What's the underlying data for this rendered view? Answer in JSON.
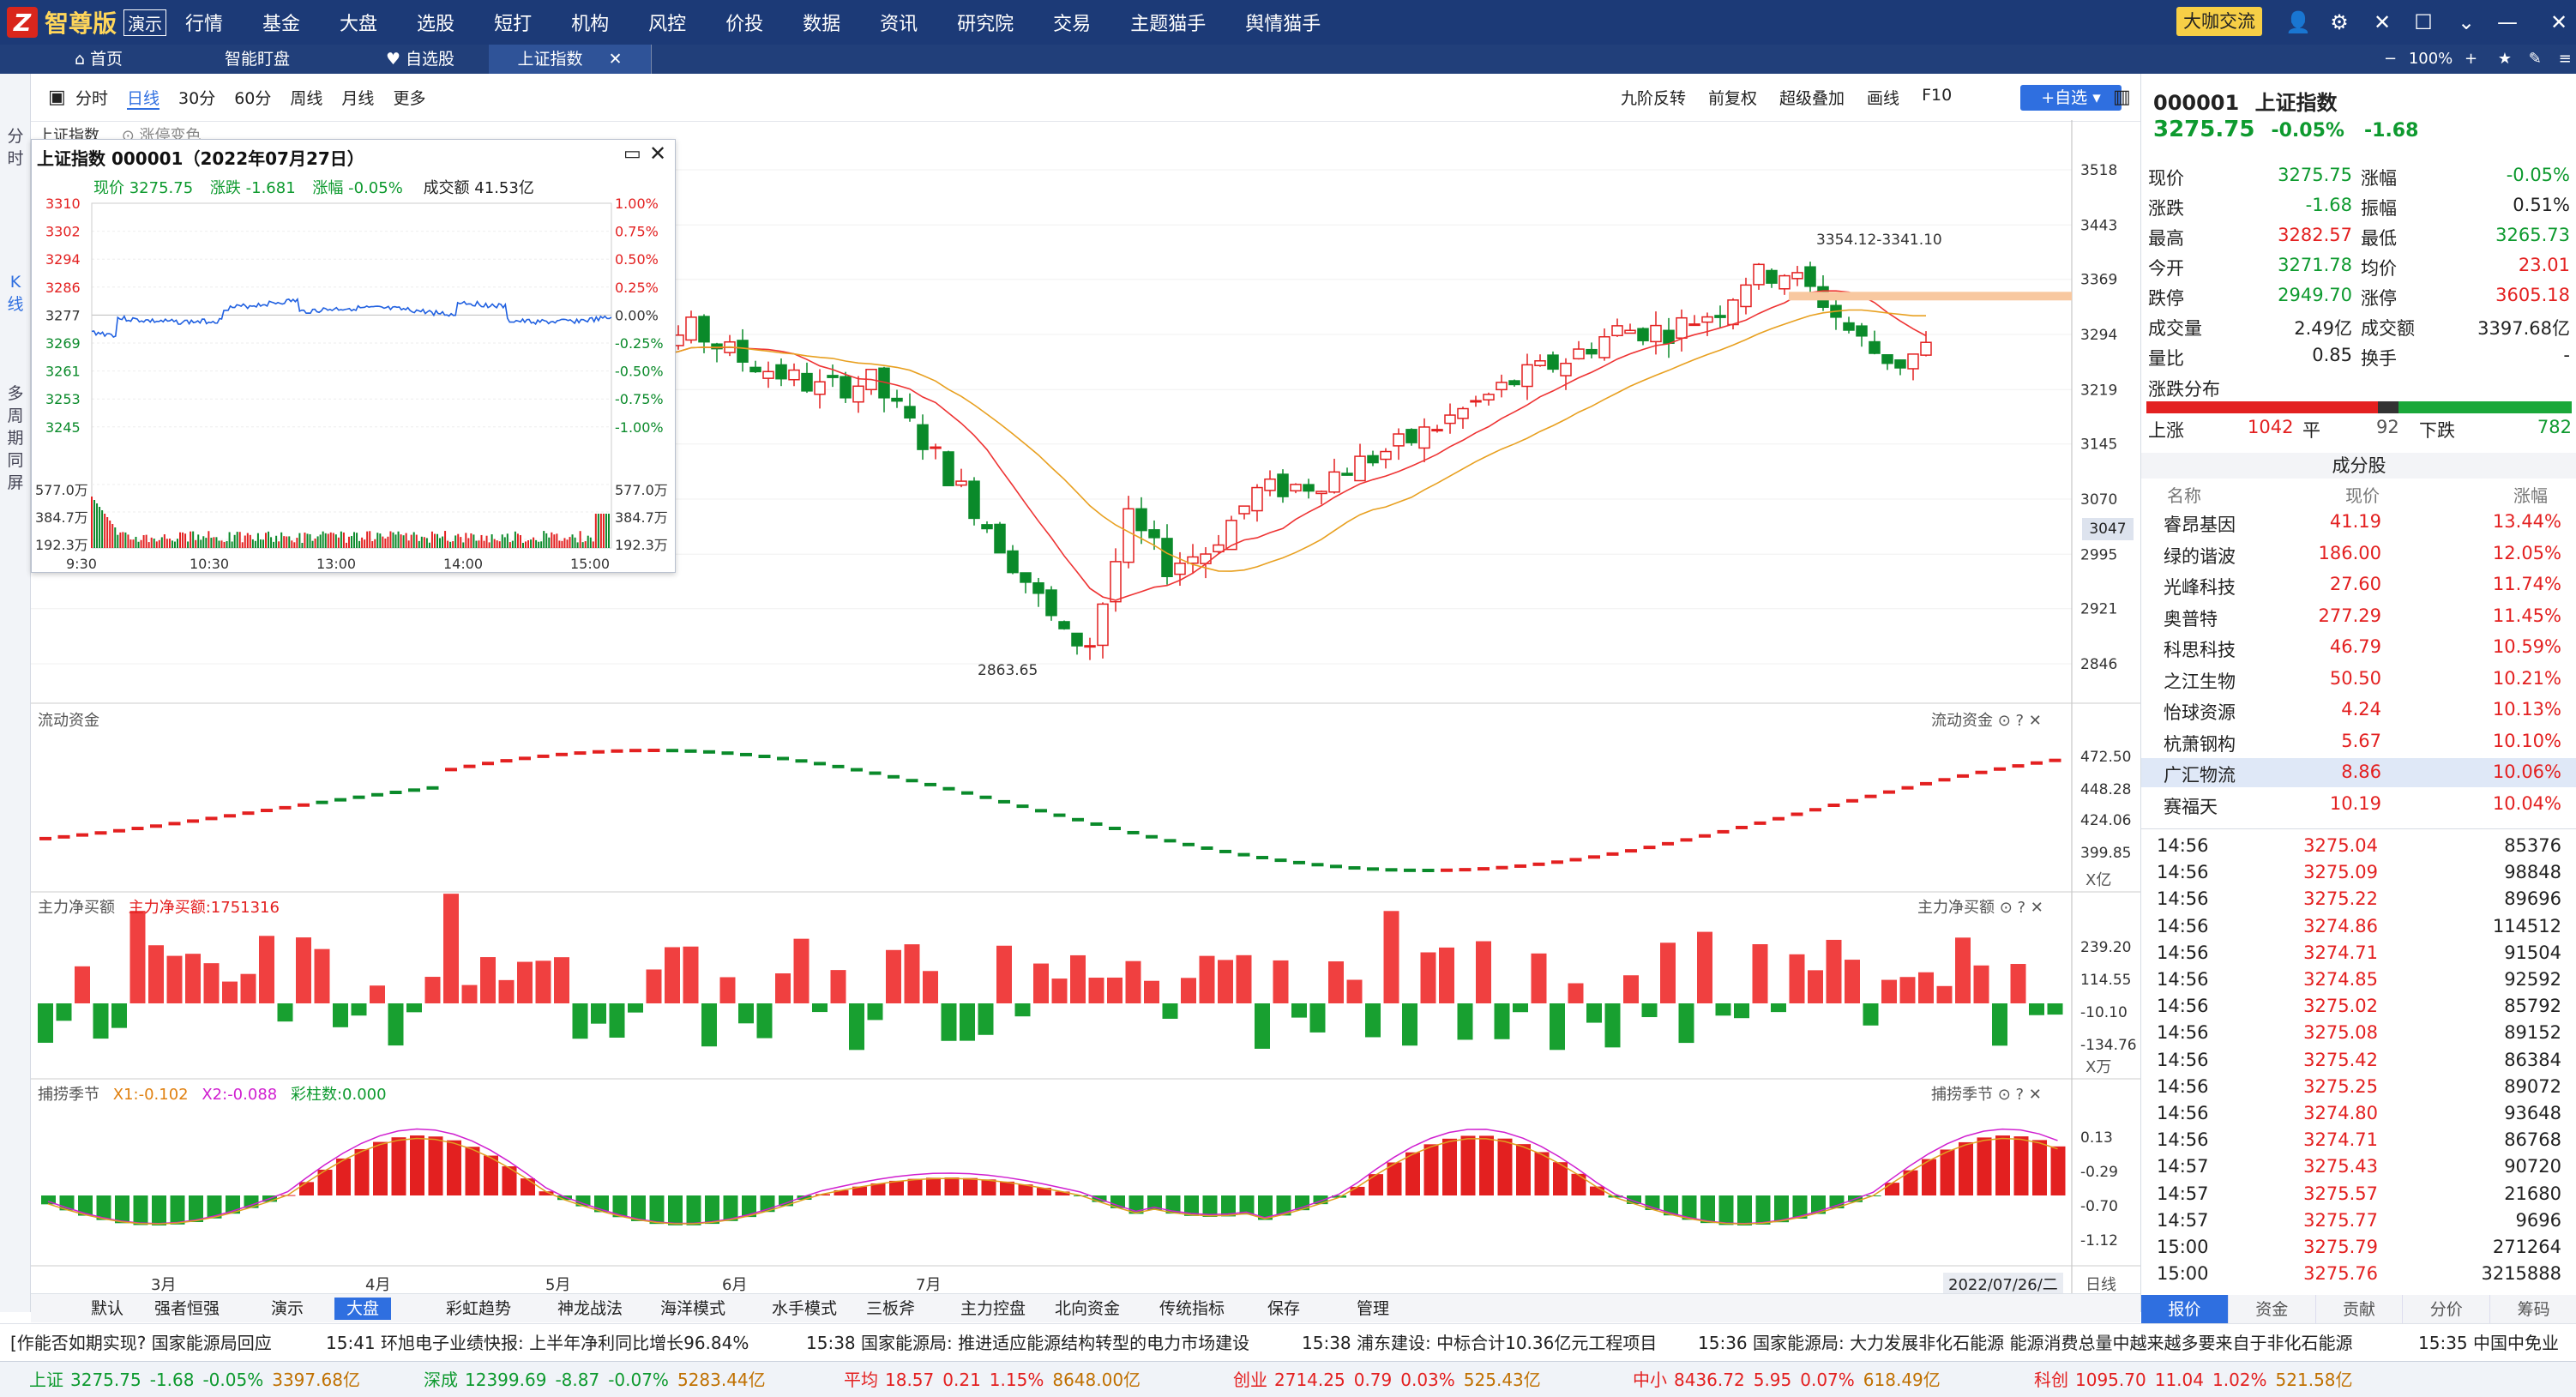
{
  "app": {
    "logo_text": "智尊版",
    "demo_badge": "演示",
    "big_talk": "大咖交流",
    "zoom": "100%"
  },
  "top_menu": [
    "行情",
    "基金",
    "大盘",
    "选股",
    "短打",
    "机构",
    "风控",
    "价投",
    "数据",
    "资讯",
    "研究院",
    "交易",
    "主题猫手",
    "舆情猫手"
  ],
  "tabs": {
    "home": "首页",
    "smart": "智能盯盘",
    "watch": "自选股",
    "index": "上证指数"
  },
  "left_tabs": {
    "intraday": "分时",
    "kline": "K线",
    "multi": "多周期同屏"
  },
  "toolbar": {
    "periods": [
      "分时",
      "日线",
      "30分",
      "60分",
      "周线",
      "月线",
      "更多"
    ],
    "active": "日线",
    "right": [
      "九阶反转",
      "前复权",
      "超级叠加",
      "画线",
      "F10"
    ],
    "add_fav": "+自选"
  },
  "chart": {
    "name": "上证指数",
    "sub": "涨停变色",
    "ylabels": [
      "3518",
      "3443",
      "3369",
      "3294",
      "3219",
      "3145",
      "3070",
      "2995",
      "2921",
      "2846"
    ],
    "cursor_price": "3047",
    "hl_label": "3354.12-3341.10",
    "low_label": "2863.65",
    "months": [
      "3月",
      "4月",
      "5月",
      "6月",
      "7月"
    ],
    "date_end": "2022/07/26/二",
    "period_end": "日线",
    "ind1": {
      "title": "流动资金",
      "right_title": "流动资金",
      "ylabels": [
        "472.50",
        "448.28",
        "424.06",
        "399.85"
      ],
      "unit": "X亿"
    },
    "ind2": {
      "title": "主力净买额",
      "val": "主力净买额:1751316",
      "right_title": "主力净买额",
      "ylabels": [
        "239.20",
        "114.55",
        "-10.10",
        "-134.76"
      ],
      "unit": "X万"
    },
    "ind3": {
      "title": "捕捞季节",
      "x1": "X1:-0.102",
      "x2": "X2:-0.088",
      "bars": "彩柱数:0.000",
      "right_title": "捕捞季节",
      "ylabels": [
        "0.13",
        "-0.29",
        "-0.70",
        "-1.12"
      ]
    }
  },
  "chart_data": {
    "type": "candlestick",
    "series_name": "上证指数",
    "x_range": [
      "2022-02",
      "2022-07-26"
    ],
    "y_range": [
      2846,
      3518
    ],
    "low": 2863.65,
    "marked_high": "3354.12-3341.10"
  },
  "popup": {
    "title": "上证指数 000001（2022年07月27日）",
    "now_label": "现价",
    "now": "3275.75",
    "chg_label": "涨跌",
    "chg": "-1.681",
    "pct_label": "涨幅",
    "pct": "-0.05%",
    "amt_label": "成交额",
    "amt": "41.53亿",
    "yleft": [
      "3310",
      "3302",
      "3294",
      "3286",
      "3277",
      "3269",
      "3261",
      "3253",
      "3245"
    ],
    "yright": [
      "1.00%",
      "0.75%",
      "0.50%",
      "0.25%",
      "0.00%",
      "-0.25%",
      "-0.50%",
      "-0.75%",
      "-1.00%"
    ],
    "vol_left": [
      "577.0万",
      "384.7万",
      "192.3万"
    ],
    "vol_right": [
      "577.0万",
      "384.7万",
      "192.3万"
    ],
    "times": [
      "9:30",
      "10:30",
      "13:00",
      "14:00",
      "15:00"
    ]
  },
  "quote": {
    "code": "000001",
    "name": "上证指数",
    "price": "3275.75",
    "pct": "-0.05%",
    "chg": "-1.68",
    "rows": [
      [
        "现价",
        "3275.75",
        "涨幅",
        "-0.05%"
      ],
      [
        "涨跌",
        "-1.68",
        "振幅",
        "0.51%"
      ],
      [
        "最高",
        "3282.57",
        "最低",
        "3265.73"
      ],
      [
        "今开",
        "3271.78",
        "均价",
        "23.01"
      ],
      [
        "跌停",
        "2949.70",
        "涨停",
        "3605.18"
      ],
      [
        "成交量",
        "2.49亿",
        "成交额",
        "3397.68亿"
      ],
      [
        "量比",
        "0.85",
        "换手",
        "-"
      ]
    ],
    "dist_title": "涨跌分布",
    "up_label": "上涨",
    "up": "1042",
    "flat_label": "平",
    "flat": "92",
    "down_label": "下跌",
    "down": "782",
    "comp_title": "成分股",
    "comp_headers": [
      "名称",
      "现价",
      "涨幅"
    ],
    "components": [
      [
        "睿昂基因",
        "41.19",
        "13.44%"
      ],
      [
        "绿的谐波",
        "186.00",
        "12.05%"
      ],
      [
        "光峰科技",
        "27.60",
        "11.74%"
      ],
      [
        "奥普特",
        "277.29",
        "11.45%"
      ],
      [
        "科思科技",
        "46.79",
        "10.59%"
      ],
      [
        "之江生物",
        "50.50",
        "10.21%"
      ],
      [
        "怡球资源",
        "4.24",
        "10.13%"
      ],
      [
        "杭萧钢构",
        "5.67",
        "10.10%"
      ],
      [
        "广汇物流",
        "8.86",
        "10.06%"
      ],
      [
        "赛福天",
        "10.19",
        "10.04%"
      ]
    ],
    "ticks": [
      [
        "14:56",
        "3275.04",
        "85376"
      ],
      [
        "14:56",
        "3275.09",
        "98848"
      ],
      [
        "14:56",
        "3275.22",
        "89696"
      ],
      [
        "14:56",
        "3274.86",
        "114512"
      ],
      [
        "14:56",
        "3274.71",
        "91504"
      ],
      [
        "14:56",
        "3274.85",
        "92592"
      ],
      [
        "14:56",
        "3275.02",
        "85792"
      ],
      [
        "14:56",
        "3275.08",
        "89152"
      ],
      [
        "14:56",
        "3275.42",
        "86384"
      ],
      [
        "14:56",
        "3275.25",
        "89072"
      ],
      [
        "14:56",
        "3274.80",
        "93648"
      ],
      [
        "14:56",
        "3274.71",
        "86768"
      ],
      [
        "14:57",
        "3275.43",
        "90720"
      ],
      [
        "14:57",
        "3275.57",
        "21680"
      ],
      [
        "14:57",
        "3275.77",
        "9696"
      ],
      [
        "15:00",
        "3275.79",
        "271264"
      ],
      [
        "15:00",
        "3275.76",
        "3215888"
      ]
    ],
    "bottom_tabs": [
      "报价",
      "资金",
      "贡献",
      "分价",
      "筹码"
    ]
  },
  "bottom_tabs": [
    "默认",
    "强者恒强",
    "演示",
    "大盘",
    "彩虹趋势",
    "神龙战法",
    "海洋模式",
    "水手模式",
    "三板斧",
    "主力控盘",
    "北向资金",
    "传统指标",
    "保存",
    "管理"
  ],
  "news": [
    "[作能否如期实现? 国家能源局回应",
    "15:41  环旭电子业绩快报: 上半年净利同比增长96.84%",
    "15:38  国家能源局: 推进适应能源结构转型的电力市场建设",
    "15:38  浦东建设: 中标合计10.36亿元工程项目",
    "15:36  国家能源局: 大力发展非化石能源 能源消费总量中越来越多要来自于非化石能源",
    "15:35  中国中免业"
  ],
  "status": [
    [
      "上证",
      "3275.75",
      "-1.68",
      "-0.05%",
      "3397.68亿"
    ],
    [
      "深成",
      "12399.69",
      "-8.87",
      "-0.07%",
      "5283.44亿"
    ],
    [
      "平均",
      "18.57",
      "0.21",
      "1.15%",
      "8648.00亿"
    ],
    [
      "创业",
      "2714.25",
      "0.79",
      "0.03%",
      "525.43亿"
    ],
    [
      "中小",
      "8436.72",
      "5.95",
      "0.07%",
      "618.49亿"
    ],
    [
      "科创",
      "1095.70",
      "11.04",
      "1.02%",
      "521.58亿"
    ]
  ]
}
